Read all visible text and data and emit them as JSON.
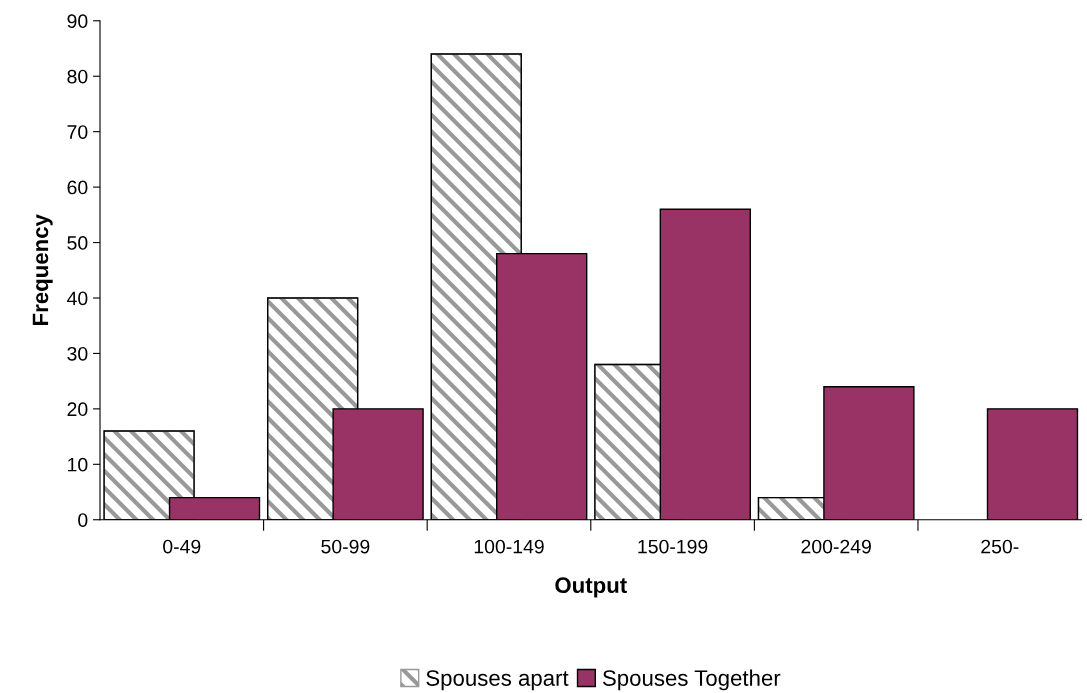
{
  "chart_data": {
    "type": "bar",
    "xlabel": "Output",
    "ylabel": "Frequency",
    "categories": [
      "0-49",
      "50-99",
      "100-149",
      "150-199",
      "200-249",
      "250-"
    ],
    "series": [
      {
        "name": "Spouses apart",
        "color": "#999999",
        "values": [
          16,
          40,
          84,
          28,
          4,
          null
        ]
      },
      {
        "name": "Spouses Together",
        "color": "#993366",
        "values": [
          4,
          20,
          48,
          56,
          24,
          20
        ]
      }
    ],
    "ylim": [
      0,
      90
    ],
    "yticks": [
      0,
      10,
      20,
      30,
      40,
      50,
      60,
      70,
      80,
      90
    ],
    "grid": false,
    "legend": "bottom"
  }
}
